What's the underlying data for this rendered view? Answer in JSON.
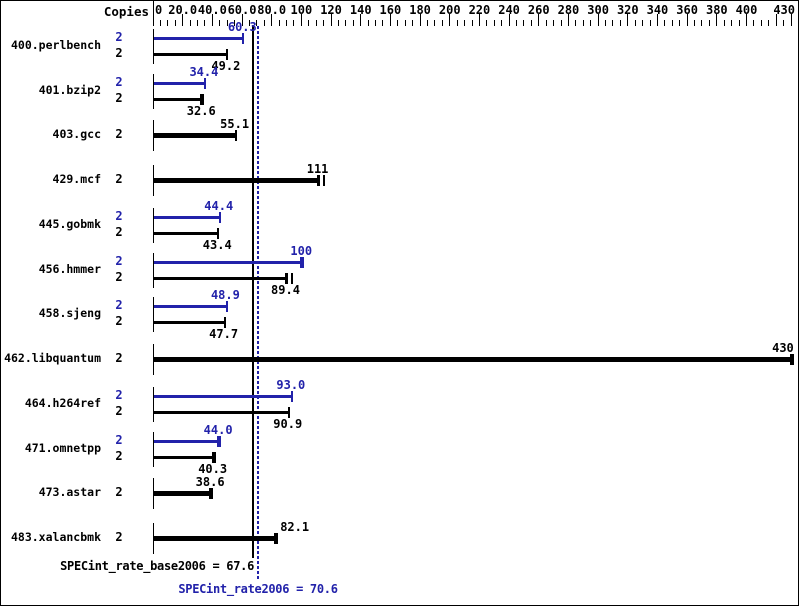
{
  "colors": {
    "peak_blue": "#2222aa",
    "base_black": "#000000",
    "background": "#ffffff",
    "border": "#000000"
  },
  "header": {
    "copies_label": "Copies"
  },
  "axis": {
    "min": 0,
    "max": 430,
    "minor_step": 5,
    "major_step": 20,
    "labels": [
      {
        "value": 0,
        "text": "0"
      },
      {
        "value": 20,
        "text": "20.0"
      },
      {
        "value": 40,
        "text": "40.0"
      },
      {
        "value": 60,
        "text": "60.0"
      },
      {
        "value": 80,
        "text": "80.0"
      },
      {
        "value": 100,
        "text": "100"
      },
      {
        "value": 120,
        "text": "120"
      },
      {
        "value": 140,
        "text": "140"
      },
      {
        "value": 160,
        "text": "160"
      },
      {
        "value": 180,
        "text": "180"
      },
      {
        "value": 200,
        "text": "200"
      },
      {
        "value": 220,
        "text": "220"
      },
      {
        "value": 240,
        "text": "240"
      },
      {
        "value": 260,
        "text": "260"
      },
      {
        "value": 280,
        "text": "280"
      },
      {
        "value": 300,
        "text": "300"
      },
      {
        "value": 320,
        "text": "320"
      },
      {
        "value": 340,
        "text": "340"
      },
      {
        "value": 360,
        "text": "360"
      },
      {
        "value": 380,
        "text": "380"
      },
      {
        "value": 400,
        "text": "400"
      },
      {
        "value": 430,
        "text": "430"
      }
    ]
  },
  "benchmarks": [
    {
      "name": "400.perlbench",
      "bars": [
        {
          "kind": "peak",
          "copies": "2",
          "value": 60.3,
          "label": "60.3",
          "cap": "single"
        },
        {
          "kind": "base",
          "copies": "2",
          "value": 49.2,
          "label": "49.2",
          "cap": "single"
        }
      ]
    },
    {
      "name": "401.bzip2",
      "bars": [
        {
          "kind": "peak",
          "copies": "2",
          "value": 34.4,
          "label": "34.4",
          "cap": "single"
        },
        {
          "kind": "base",
          "copies": "2",
          "value": 32.6,
          "label": "32.6",
          "cap": "thick"
        }
      ]
    },
    {
      "name": "403.gcc",
      "bars": [
        {
          "kind": "basepeak",
          "copies": "2",
          "value": 55.1,
          "label": "55.1",
          "cap": "single"
        }
      ]
    },
    {
      "name": "429.mcf",
      "bars": [
        {
          "kind": "basepeak",
          "copies": "2",
          "value": 111,
          "label": "111",
          "cap": "double"
        }
      ]
    },
    {
      "name": "445.gobmk",
      "bars": [
        {
          "kind": "peak",
          "copies": "2",
          "value": 44.4,
          "label": "44.4",
          "cap": "single"
        },
        {
          "kind": "base",
          "copies": "2",
          "value": 43.4,
          "label": "43.4",
          "cap": "single"
        }
      ]
    },
    {
      "name": "456.hmmer",
      "bars": [
        {
          "kind": "peak",
          "copies": "2",
          "value": 100,
          "label": "100",
          "cap": "thick"
        },
        {
          "kind": "base",
          "copies": "2",
          "value": 89.4,
          "label": "89.4",
          "cap": "double"
        }
      ]
    },
    {
      "name": "458.sjeng",
      "bars": [
        {
          "kind": "peak",
          "copies": "2",
          "value": 48.9,
          "label": "48.9",
          "cap": "single"
        },
        {
          "kind": "base",
          "copies": "2",
          "value": 47.7,
          "label": "47.7",
          "cap": "single"
        }
      ]
    },
    {
      "name": "462.libquantum",
      "bars": [
        {
          "kind": "basepeak",
          "copies": "2",
          "value": 430,
          "label": "430",
          "cap": "thick"
        }
      ]
    },
    {
      "name": "464.h264ref",
      "bars": [
        {
          "kind": "peak",
          "copies": "2",
          "value": 93.0,
          "label": "93.0",
          "cap": "single"
        },
        {
          "kind": "base",
          "copies": "2",
          "value": 90.9,
          "label": "90.9",
          "cap": "single"
        }
      ]
    },
    {
      "name": "471.omnetpp",
      "bars": [
        {
          "kind": "peak",
          "copies": "2",
          "value": 44.0,
          "label": "44.0",
          "cap": "thick"
        },
        {
          "kind": "base",
          "copies": "2",
          "value": 40.3,
          "label": "40.3",
          "cap": "thick"
        }
      ]
    },
    {
      "name": "473.astar",
      "bars": [
        {
          "kind": "basepeak",
          "copies": "2",
          "value": 38.6,
          "label": "38.6",
          "cap": "thick"
        }
      ]
    },
    {
      "name": "483.xalancbmk",
      "bars": [
        {
          "kind": "basepeak",
          "copies": "2",
          "value": 82.1,
          "label": "82.1",
          "cap": "thick",
          "label_dx": 20
        }
      ]
    }
  ],
  "reference_lines": [
    {
      "kind": "base",
      "value": 67.6,
      "style": "solid",
      "color": "#000000"
    },
    {
      "kind": "peak",
      "value": 70.6,
      "style": "dotted",
      "color": "#2222aa"
    }
  ],
  "summary": {
    "base_text": "SPECint_rate_base2006 = 67.6",
    "peak_text": "SPECint_rate2006 = 70.6"
  },
  "chart_data": {
    "type": "bar",
    "orientation": "horizontal",
    "title": "",
    "xlabel": "",
    "ylabel": "Copies",
    "xlim": [
      0,
      430
    ],
    "x_major_tick": 20,
    "x_minor_tick": 5,
    "grid": false,
    "legend": "none",
    "categories": [
      "400.perlbench",
      "401.bzip2",
      "403.gcc",
      "429.mcf",
      "445.gobmk",
      "456.hmmer",
      "458.sjeng",
      "462.libquantum",
      "464.h264ref",
      "471.omnetpp",
      "473.astar",
      "483.xalancbmk"
    ],
    "copies_per_benchmark": [
      2,
      2,
      2,
      2,
      2,
      2,
      2,
      2,
      2,
      2,
      2,
      2
    ],
    "series": [
      {
        "name": "peak",
        "color": "#2222aa",
        "values": [
          60.3,
          34.4,
          null,
          null,
          44.4,
          100,
          48.9,
          null,
          93.0,
          44.0,
          null,
          null
        ]
      },
      {
        "name": "base",
        "color": "#000000",
        "values": [
          49.2,
          32.6,
          55.1,
          111,
          43.4,
          89.4,
          47.7,
          430,
          90.9,
          40.3,
          38.6,
          82.1
        ]
      }
    ],
    "single_bar_categories": [
      "403.gcc",
      "429.mcf",
      "462.libquantum",
      "473.astar",
      "483.xalancbmk"
    ],
    "reference_lines": [
      {
        "label": "SPECint_rate_base2006",
        "value": 67.6
      },
      {
        "label": "SPECint_rate2006",
        "value": 70.6
      }
    ]
  }
}
